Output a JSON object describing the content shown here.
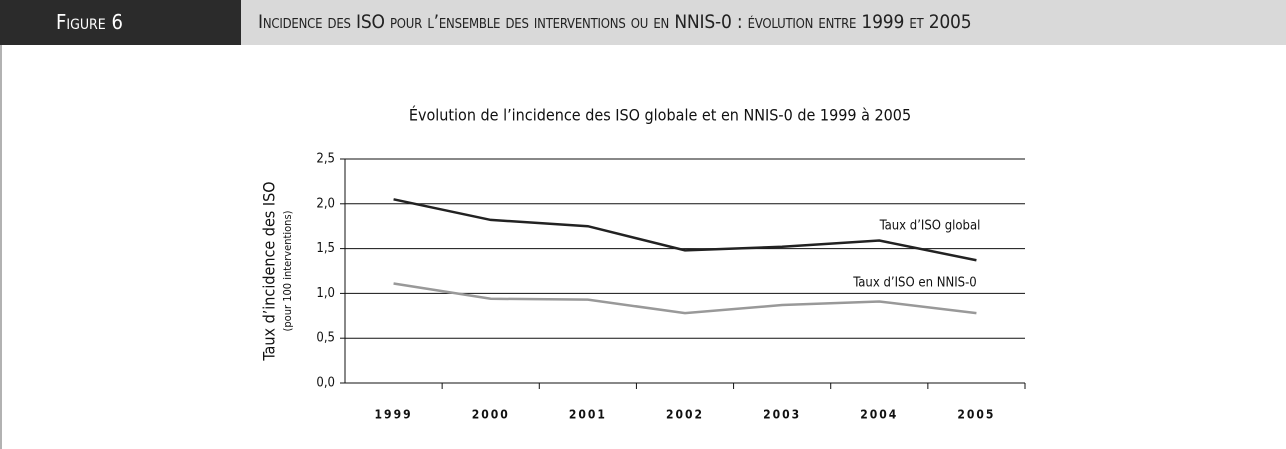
{
  "header": {
    "figure": "Figure 6",
    "title": "Incidence des ISO pour l’ensemble des interventions ou en NNIS-0 : évolution entre 1999 et 2005"
  },
  "chart_data": {
    "type": "line",
    "title": "Évolution de l’incidence des ISO globale et en NNIS-0 de 1999 à 2005",
    "y_label": "Taux d’incidence des ISO",
    "y_label_sub": "(pour 100 interventions)",
    "categories": [
      "1999",
      "2000",
      "2001",
      "2002",
      "2003",
      "2004",
      "2005"
    ],
    "series": [
      {
        "name": "Taux d’ISO global",
        "color": "#222222",
        "values": [
          2.05,
          1.82,
          1.75,
          1.48,
          1.52,
          1.59,
          1.37
        ]
      },
      {
        "name": "Taux d’ISO en NNIS-0",
        "color": "#999999",
        "values": [
          1.11,
          0.94,
          0.93,
          0.78,
          0.87,
          0.91,
          0.78
        ]
      }
    ],
    "ylim": [
      0,
      2.5
    ],
    "yticks": [
      {
        "value": 0,
        "label": "0,0"
      },
      {
        "value": 0.5,
        "label": "0,5"
      },
      {
        "value": 1,
        "label": "1,0"
      },
      {
        "value": 1.5,
        "label": "1,5"
      },
      {
        "value": 2,
        "label": "2,0"
      },
      {
        "value": 2.5,
        "label": "2,5"
      }
    ],
    "grid": true
  }
}
